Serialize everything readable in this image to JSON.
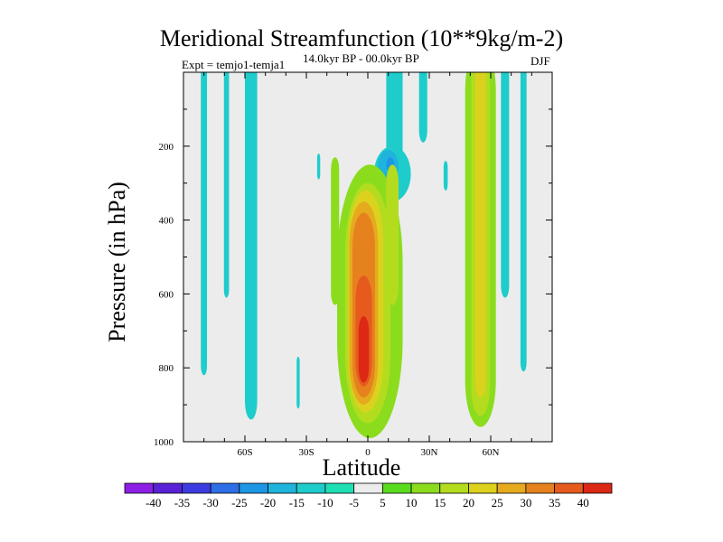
{
  "chart_data": {
    "type": "contour",
    "title": "Meridional Streamfunction (10**9kg/m-2)",
    "subtitle_left": "Expt = temjo1-temja1",
    "subtitle_center": "14.0kyr BP - 00.0kyr BP",
    "subtitle_right": "DJF",
    "xlabel": "Latitude",
    "ylabel": "Pressure (in hPa)",
    "xlim": [
      -90,
      90
    ],
    "ylim": [
      1000,
      0
    ],
    "x_ticks": [
      {
        "value": -60,
        "label": "60S"
      },
      {
        "value": -30,
        "label": "30S"
      },
      {
        "value": 0,
        "label": "0"
      },
      {
        "value": 30,
        "label": "30N"
      },
      {
        "value": 60,
        "label": "60N"
      }
    ],
    "y_ticks": [
      {
        "value": 200,
        "label": "200"
      },
      {
        "value": 400,
        "label": "400"
      },
      {
        "value": 600,
        "label": "600"
      },
      {
        "value": 800,
        "label": "800"
      },
      {
        "value": 1000,
        "label": "1000"
      }
    ],
    "background_color": "#ececec",
    "colorbar": {
      "labels": [
        "-40",
        "-35",
        "-30",
        "-25",
        "-20",
        "-15",
        "-10",
        "-5",
        "5",
        "10",
        "15",
        "20",
        "25",
        "30",
        "35",
        "40"
      ],
      "colors": [
        "#8c1ee6",
        "#5a22d6",
        "#3c3ce0",
        "#2e6ee6",
        "#1e96e6",
        "#1eb4dc",
        "#1ecccc",
        "#1ee0b4",
        "#ececec",
        "#5adc1e",
        "#8cdc1e",
        "#b4dc1e",
        "#dcd21e",
        "#e6aa1e",
        "#e6821e",
        "#e65a1e",
        "#dc2814"
      ]
    },
    "regions": [
      {
        "level": -10,
        "lat": -80,
        "p": 0,
        "w": 3,
        "h": 820
      },
      {
        "level": -10,
        "lat": -69,
        "p": 0,
        "w": 2.5,
        "h": 610
      },
      {
        "level": -10,
        "lat": -57,
        "p": 0,
        "w": 6,
        "h": 940
      },
      {
        "level": -10,
        "lat": -34,
        "p": 770,
        "w": 1.5,
        "h": 140
      },
      {
        "level": -10,
        "lat": -24,
        "p": 220,
        "w": 1.5,
        "h": 70
      },
      {
        "level": -10,
        "lat": 12,
        "p": 200,
        "w": 18,
        "h": 150
      },
      {
        "level": -10,
        "lat": 13,
        "p": 0,
        "w": 8,
        "h": 300
      },
      {
        "level": -10,
        "lat": 27,
        "p": 0,
        "w": 4,
        "h": 190
      },
      {
        "level": -10,
        "lat": 38,
        "p": 240,
        "w": 2,
        "h": 80
      },
      {
        "level": -10,
        "lat": 67,
        "p": 0,
        "w": 4,
        "h": 610
      },
      {
        "level": -10,
        "lat": 76,
        "p": 0,
        "w": 3,
        "h": 810
      },
      {
        "level": -15,
        "lat": 10,
        "p": 210,
        "w": 10,
        "h": 90
      },
      {
        "level": -20,
        "lat": 11,
        "p": 230,
        "w": 4,
        "h": 40
      },
      {
        "level": 10,
        "lat": -16,
        "p": 230,
        "w": 4,
        "h": 400
      },
      {
        "level": 10,
        "lat": 1,
        "p": 250,
        "w": 32,
        "h": 740
      },
      {
        "level": 10,
        "lat": 55,
        "p": 0,
        "w": 15,
        "h": 960
      },
      {
        "level": 15,
        "lat": 0,
        "p": 300,
        "w": 22,
        "h": 650
      },
      {
        "level": 15,
        "lat": 55,
        "p": 0,
        "w": 9,
        "h": 930
      },
      {
        "level": 15,
        "lat": 12,
        "p": 250,
        "w": 6,
        "h": 380
      },
      {
        "level": 20,
        "lat": -1,
        "p": 320,
        "w": 17,
        "h": 600
      },
      {
        "level": 20,
        "lat": 55,
        "p": 0,
        "w": 5,
        "h": 880
      },
      {
        "level": 25,
        "lat": -2,
        "p": 350,
        "w": 14,
        "h": 550
      },
      {
        "level": 30,
        "lat": -2,
        "p": 380,
        "w": 11,
        "h": 500
      },
      {
        "level": 35,
        "lat": -2,
        "p": 550,
        "w": 8,
        "h": 300
      },
      {
        "level": 40,
        "lat": -2,
        "p": 660,
        "w": 5,
        "h": 180
      }
    ]
  }
}
